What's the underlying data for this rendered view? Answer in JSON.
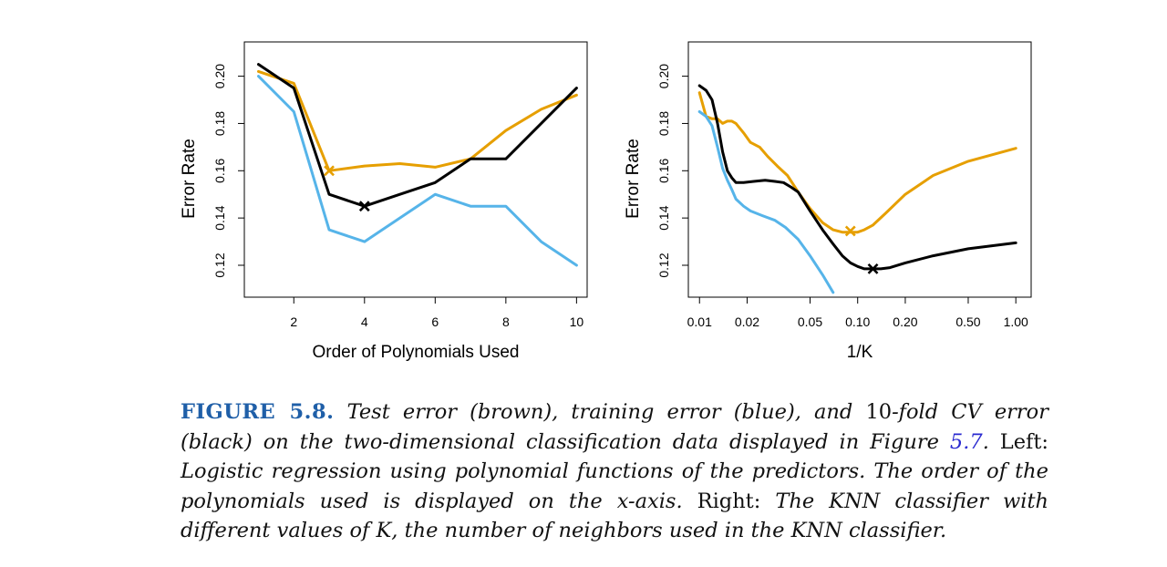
{
  "chart_data": [
    {
      "type": "line",
      "xlabel": "Order of Polynomials Used",
      "ylabel": "Error Rate",
      "x_scale": "linear",
      "xlim": [
        0.6,
        10.3
      ],
      "ylim": [
        0.1065,
        0.2145
      ],
      "xticks": [
        2,
        4,
        6,
        8,
        10
      ],
      "xtick_labels": [
        "2",
        "4",
        "6",
        "8",
        "10"
      ],
      "yticks": [
        0.12,
        0.14,
        0.16,
        0.18,
        0.2
      ],
      "ytick_labels": [
        "0.12",
        "0.14",
        "0.16",
        "0.18",
        "0.20"
      ],
      "series": [
        {
          "name": "Test error",
          "color": "#E69F00",
          "x": [
            1,
            2,
            3,
            4,
            5,
            6,
            7,
            8,
            9,
            10
          ],
          "y": [
            0.202,
            0.197,
            0.16,
            0.162,
            0.163,
            0.1615,
            0.165,
            0.177,
            0.186,
            0.192
          ]
        },
        {
          "name": "Training error",
          "color": "#56B4E9",
          "x": [
            1,
            2,
            3,
            4,
            5,
            6,
            7,
            8,
            9,
            10
          ],
          "y": [
            0.2,
            0.185,
            0.135,
            0.13,
            0.14,
            0.15,
            0.145,
            0.145,
            0.13,
            0.12
          ]
        },
        {
          "name": "10-fold CV error",
          "color": "#000000",
          "x": [
            1,
            2,
            3,
            4,
            5,
            6,
            7,
            8,
            9,
            10
          ],
          "y": [
            0.205,
            0.195,
            0.15,
            0.145,
            0.15,
            0.155,
            0.165,
            0.165,
            0.18,
            0.195
          ]
        }
      ],
      "markers": [
        {
          "series": "Test error",
          "x": 3,
          "y": 0.16,
          "color": "#E69F00"
        },
        {
          "series": "10-fold CV error",
          "x": 4,
          "y": 0.145,
          "color": "#000000"
        }
      ]
    },
    {
      "type": "line",
      "xlabel": "1/K",
      "ylabel": "Error Rate",
      "x_scale": "log",
      "xlim": [
        0.0085,
        1.25
      ],
      "ylim": [
        0.1065,
        0.2145
      ],
      "xticks": [
        0.01,
        0.02,
        0.05,
        0.1,
        0.2,
        0.5,
        1.0
      ],
      "xtick_labels": [
        "0.01",
        "0.02",
        "0.05",
        "0.10",
        "0.20",
        "0.50",
        "1.00"
      ],
      "yticks": [
        0.12,
        0.14,
        0.16,
        0.18,
        0.2
      ],
      "ytick_labels": [
        "0.12",
        "0.14",
        "0.16",
        "0.18",
        "0.20"
      ],
      "series": [
        {
          "name": "Test error",
          "color": "#E69F00",
          "x": [
            0.01,
            0.011,
            0.012,
            0.013,
            0.014,
            0.015,
            0.016,
            0.017,
            0.019,
            0.021,
            0.024,
            0.027,
            0.031,
            0.036,
            0.042,
            0.05,
            0.06,
            0.07,
            0.08,
            0.09,
            0.1,
            0.11,
            0.125,
            0.15,
            0.2,
            0.3,
            0.5,
            1.0
          ],
          "y": [
            0.193,
            0.183,
            0.182,
            0.182,
            0.18,
            0.181,
            0.181,
            0.18,
            0.176,
            0.172,
            0.17,
            0.166,
            0.162,
            0.158,
            0.151,
            0.144,
            0.138,
            0.135,
            0.134,
            0.134,
            0.134,
            0.135,
            0.137,
            0.142,
            0.15,
            0.158,
            0.164,
            0.1695
          ]
        },
        {
          "name": "Training error",
          "color": "#56B4E9",
          "x": [
            0.01,
            0.011,
            0.012,
            0.013,
            0.014,
            0.015,
            0.016,
            0.017,
            0.019,
            0.021,
            0.025,
            0.03,
            0.035,
            0.042,
            0.05,
            0.06,
            0.07
          ],
          "y": [
            0.185,
            0.183,
            0.179,
            0.17,
            0.161,
            0.156,
            0.152,
            0.148,
            0.145,
            0.143,
            0.141,
            0.139,
            0.136,
            0.131,
            0.124,
            0.116,
            0.1085
          ]
        },
        {
          "name": "10-fold CV error",
          "color": "#000000",
          "x": [
            0.01,
            0.011,
            0.012,
            0.013,
            0.014,
            0.015,
            0.016,
            0.017,
            0.019,
            0.022,
            0.026,
            0.03,
            0.034,
            0.038,
            0.042,
            0.05,
            0.06,
            0.07,
            0.08,
            0.09,
            0.1,
            0.11,
            0.125,
            0.14,
            0.16,
            0.2,
            0.3,
            0.5,
            1.0
          ],
          "y": [
            0.196,
            0.194,
            0.19,
            0.18,
            0.168,
            0.16,
            0.157,
            0.155,
            0.155,
            0.1555,
            0.156,
            0.1555,
            0.155,
            0.153,
            0.151,
            0.143,
            0.135,
            0.129,
            0.124,
            0.121,
            0.1195,
            0.1185,
            0.1185,
            0.1185,
            0.119,
            0.121,
            0.124,
            0.127,
            0.1295
          ]
        }
      ],
      "markers": [
        {
          "series": "Test error",
          "x": 0.09,
          "y": 0.1345,
          "color": "#E69F00"
        },
        {
          "series": "10-fold CV error",
          "x": 0.125,
          "y": 0.1185,
          "color": "#000000"
        }
      ]
    }
  ],
  "caption": {
    "label": "FIGURE 5.8.",
    "part1": "Test error (brown), training error (blue), and",
    "num": "10",
    "part2": "-fold CV error (black) on the two-dimensional classification data displayed in Figure",
    "ref": "5.7",
    "part3": ".",
    "left": "Left:",
    "part4": "Logistic regression using polynomial functions of the predictors. The order of the polynomials used is displayed on the x-axis.",
    "right": "Right:",
    "part5": "The KNN classifier with different values of",
    "k": "K",
    "part6": ", the number of neighbors used in the KNN classifier."
  }
}
